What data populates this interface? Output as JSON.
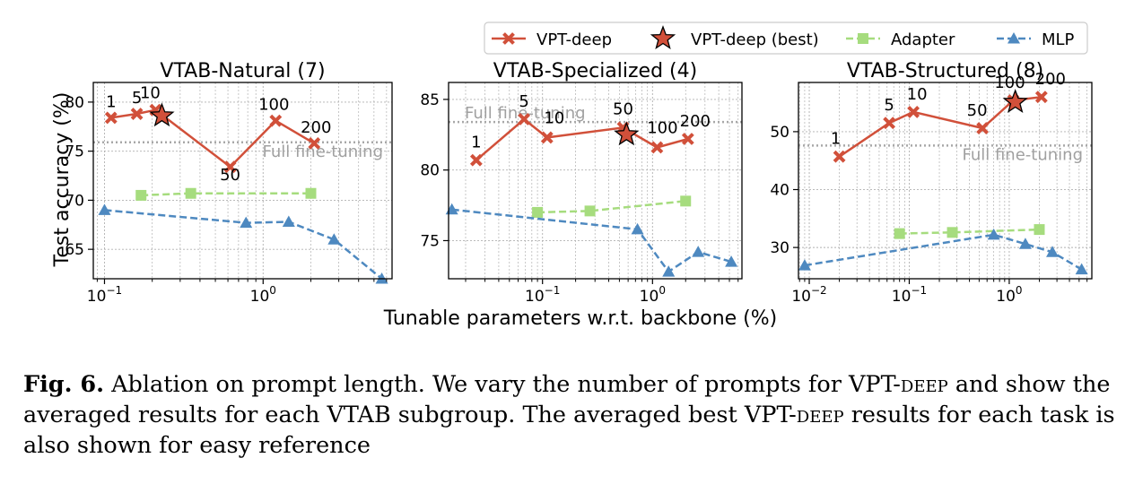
{
  "figure": {
    "x_axis_label": "Tunable parameters w.r.t. backbone (%)",
    "y_axis_label": "Test accuracy (%)",
    "reference_label": "Full fine-tuning"
  },
  "legend": {
    "placement": "top-right",
    "entries": [
      {
        "label": "VPT-deep",
        "color": "#d1503a",
        "marker": "x-marker-icon",
        "linestyle": "solid"
      },
      {
        "label": "VPT-deep (best)",
        "color": "#d1503a",
        "marker": "star-marker-icon",
        "linestyle": "none"
      },
      {
        "label": "Adapter",
        "color": "#a6dc7e",
        "marker": "square-marker-icon",
        "linestyle": "dashed"
      },
      {
        "label": "MLP",
        "color": "#4e89c0",
        "marker": "triangle-marker-icon",
        "linestyle": "dashed"
      }
    ]
  },
  "chart_data": [
    {
      "type": "line",
      "title": "VTAB-Natural (7)",
      "xscale": "log",
      "xlim": [
        0.085,
        6.5
      ],
      "ylim": [
        62,
        82
      ],
      "xticks": [
        {
          "value": 0.1,
          "base": "10",
          "exp": "−1"
        },
        {
          "value": 1,
          "base": "10",
          "exp": "0"
        }
      ],
      "yticks": [
        65,
        70,
        75,
        80
      ],
      "grid": true,
      "full_finetuning": 75.9,
      "series": [
        {
          "name": "VPT-deep",
          "points": [
            {
              "x": 0.11,
              "y": 78.4,
              "label": "1"
            },
            {
              "x": 0.16,
              "y": 78.8,
              "label": "5"
            },
            {
              "x": 0.21,
              "y": 79.2,
              "label": "10"
            },
            {
              "x": 0.62,
              "y": 73.4,
              "label": "50"
            },
            {
              "x": 1.2,
              "y": 78.1,
              "label": "100"
            },
            {
              "x": 2.1,
              "y": 75.8,
              "label": "200"
            }
          ]
        },
        {
          "name": "VPT-deep (best)",
          "points": [
            {
              "x": 0.23,
              "y": 78.6
            }
          ]
        },
        {
          "name": "Adapter",
          "points": [
            {
              "x": 0.17,
              "y": 70.5
            },
            {
              "x": 0.35,
              "y": 70.7
            },
            {
              "x": 2.0,
              "y": 70.7
            }
          ]
        },
        {
          "name": "MLP",
          "points": [
            {
              "x": 0.1,
              "y": 69.0
            },
            {
              "x": 0.78,
              "y": 67.7
            },
            {
              "x": 1.45,
              "y": 67.8
            },
            {
              "x": 2.8,
              "y": 66.0
            },
            {
              "x": 5.6,
              "y": 62.0
            }
          ]
        }
      ]
    },
    {
      "type": "line",
      "title": "VTAB-Specialized (4)",
      "xscale": "log",
      "xlim": [
        0.014,
        6.5
      ],
      "ylim": [
        72.3,
        86.2
      ],
      "xticks": [
        {
          "value": 0.1,
          "base": "10",
          "exp": "−1"
        },
        {
          "value": 1,
          "base": "10",
          "exp": "0"
        }
      ],
      "yticks": [
        75,
        80,
        85
      ],
      "grid": true,
      "full_finetuning": 83.4,
      "series": [
        {
          "name": "VPT-deep",
          "points": [
            {
              "x": 0.025,
              "y": 80.7,
              "label": "1"
            },
            {
              "x": 0.068,
              "y": 83.6,
              "label": "5"
            },
            {
              "x": 0.11,
              "y": 82.3,
              "label": "10"
            },
            {
              "x": 0.54,
              "y": 83.0,
              "label": "50"
            },
            {
              "x": 1.1,
              "y": 81.6,
              "label": "100"
            },
            {
              "x": 2.1,
              "y": 82.2,
              "label": "200"
            }
          ]
        },
        {
          "name": "VPT-deep (best)",
          "points": [
            {
              "x": 0.58,
              "y": 82.5
            }
          ]
        },
        {
          "name": "Adapter",
          "points": [
            {
              "x": 0.09,
              "y": 77.0
            },
            {
              "x": 0.27,
              "y": 77.1
            },
            {
              "x": 2.0,
              "y": 77.8
            }
          ]
        },
        {
          "name": "MLP",
          "points": [
            {
              "x": 0.015,
              "y": 77.2
            },
            {
              "x": 0.73,
              "y": 75.8
            },
            {
              "x": 1.4,
              "y": 72.8
            },
            {
              "x": 2.6,
              "y": 74.2
            },
            {
              "x": 5.2,
              "y": 73.5
            }
          ]
        }
      ]
    },
    {
      "type": "line",
      "title": "VTAB-Structured (8)",
      "xscale": "log",
      "xlim": [
        0.0078,
        6.7
      ],
      "ylim": [
        24.6,
        58.5
      ],
      "xticks": [
        {
          "value": 0.01,
          "base": "10",
          "exp": "−2"
        },
        {
          "value": 0.1,
          "base": "10",
          "exp": "−1"
        },
        {
          "value": 1,
          "base": "10",
          "exp": "0"
        }
      ],
      "yticks": [
        30,
        40,
        50
      ],
      "grid": true,
      "full_finetuning": 47.6,
      "series": [
        {
          "name": "VPT-deep",
          "points": [
            {
              "x": 0.02,
              "y": 45.7,
              "label": "1"
            },
            {
              "x": 0.063,
              "y": 51.5,
              "label": "5"
            },
            {
              "x": 0.11,
              "y": 53.4,
              "label": "10"
            },
            {
              "x": 0.54,
              "y": 50.6,
              "label": "50"
            },
            {
              "x": 1.1,
              "y": 55.4,
              "label": "100"
            },
            {
              "x": 2.1,
              "y": 56.0,
              "label": "200"
            }
          ]
        },
        {
          "name": "VPT-deep (best)",
          "points": [
            {
              "x": 1.15,
              "y": 55.1
            }
          ]
        },
        {
          "name": "Adapter",
          "points": [
            {
              "x": 0.08,
              "y": 32.4
            },
            {
              "x": 0.27,
              "y": 32.6
            },
            {
              "x": 2.0,
              "y": 33.1
            }
          ]
        },
        {
          "name": "MLP",
          "points": [
            {
              "x": 0.009,
              "y": 26.9
            },
            {
              "x": 0.7,
              "y": 32.2
            },
            {
              "x": 1.45,
              "y": 30.6
            },
            {
              "x": 2.7,
              "y": 29.2
            },
            {
              "x": 5.3,
              "y": 26.2
            }
          ]
        }
      ]
    }
  ],
  "caption": {
    "label": "Fig. 6.",
    "part1": "Ablation on prompt length. We vary the number of prompts for VPT-",
    "deep1": "deep",
    "part2": "and show the averaged results for each VTAB subgroup. The averaged best VPT-",
    "deep2": "deep",
    "part3": "results for each task is also shown for easy reference"
  }
}
